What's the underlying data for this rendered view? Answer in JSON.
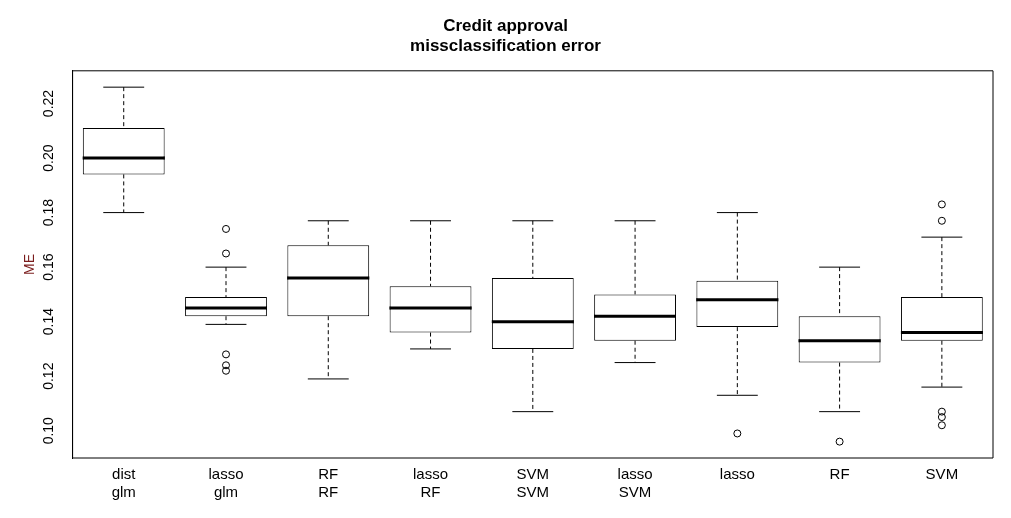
{
  "chart_data": {
    "type": "box",
    "title": "Credit approval\nmissclassification error",
    "ylabel": "ME",
    "categories": [
      "dist\nglm",
      "lasso\nglm",
      "RF\nRF",
      "lasso\nRF",
      "SVM\nSVM",
      "lasso\nSVM",
      "lasso",
      "RF",
      "SVM"
    ],
    "boxes": [
      {
        "low": 0.18,
        "q1": 0.194,
        "median": 0.2,
        "q3": 0.211,
        "high": 0.226
      },
      {
        "low": 0.139,
        "q1": 0.142,
        "median": 0.145,
        "q3": 0.149,
        "high": 0.16,
        "outliers": [
          0.174,
          0.165,
          0.128,
          0.124,
          0.122
        ]
      },
      {
        "low": 0.119,
        "q1": 0.142,
        "median": 0.156,
        "q3": 0.168,
        "high": 0.177
      },
      {
        "low": 0.13,
        "q1": 0.136,
        "median": 0.145,
        "q3": 0.153,
        "high": 0.177
      },
      {
        "low": 0.107,
        "q1": 0.13,
        "median": 0.14,
        "q3": 0.156,
        "high": 0.177
      },
      {
        "low": 0.125,
        "q1": 0.133,
        "median": 0.142,
        "q3": 0.15,
        "high": 0.177
      },
      {
        "low": 0.113,
        "q1": 0.138,
        "median": 0.148,
        "q3": 0.155,
        "high": 0.18,
        "outliers": [
          0.099
        ]
      },
      {
        "low": 0.107,
        "q1": 0.125,
        "median": 0.133,
        "q3": 0.142,
        "high": 0.16,
        "outliers": [
          0.096
        ]
      },
      {
        "low": 0.116,
        "q1": 0.133,
        "median": 0.136,
        "q3": 0.149,
        "high": 0.171,
        "outliers": [
          0.183,
          0.177,
          0.107,
          0.105,
          0.102
        ]
      }
    ],
    "ylim": [
      0.09,
      0.232
    ],
    "yticks": [
      {
        "value": 0.1,
        "label": "0.10"
      },
      {
        "value": 0.12,
        "label": "0.12"
      },
      {
        "value": 0.14,
        "label": "0.14"
      },
      {
        "value": 0.16,
        "label": "0.16"
      },
      {
        "value": 0.18,
        "label": "0.18"
      },
      {
        "value": 0.2,
        "label": "0.20"
      },
      {
        "value": 0.22,
        "label": "0.22"
      }
    ],
    "grid": false,
    "legend": false
  }
}
